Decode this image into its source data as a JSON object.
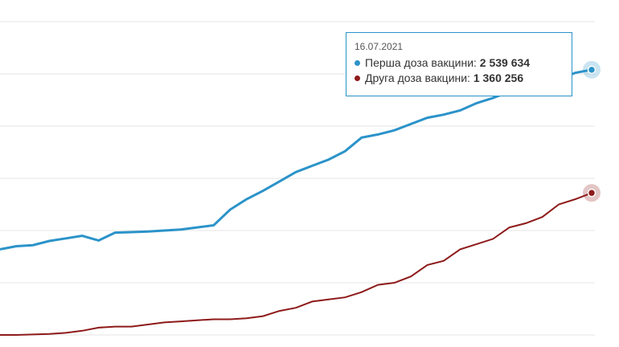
{
  "colors": {
    "first": "#2b93c9",
    "second": "#8e1a1a",
    "grid": "#e6e6e6",
    "border": "#2b93c9"
  },
  "tooltip": {
    "date": "16.07.2021",
    "first_label": "Перша доза вакцини:",
    "first_value": "2 539 634",
    "second_label": "Друга доза вакцини:",
    "second_value": "1 360 256"
  },
  "chart_data": {
    "type": "line",
    "title": "",
    "xlabel": "",
    "ylabel": "",
    "ylim": [
      0,
      3000000
    ],
    "grid": true,
    "x": [
      0,
      1,
      2,
      3,
      4,
      5,
      6,
      7,
      8,
      9,
      10,
      11,
      12,
      13,
      14,
      15,
      16,
      17,
      18,
      19,
      20,
      21,
      22,
      23,
      24,
      25,
      26,
      27,
      28,
      29,
      30,
      31,
      32,
      33,
      34,
      35,
      36
    ],
    "series": [
      {
        "name": "Перша доза вакцини",
        "values": [
          820000,
          850000,
          860000,
          900000,
          925000,
          950000,
          905000,
          980000,
          985000,
          990000,
          1000000,
          1010000,
          1030000,
          1050000,
          1200000,
          1300000,
          1380000,
          1470000,
          1560000,
          1620000,
          1680000,
          1760000,
          1890000,
          1920000,
          1960000,
          2020000,
          2080000,
          2110000,
          2150000,
          2220000,
          2270000,
          2330000,
          2380000,
          2410000,
          2450000,
          2510000,
          2539634
        ]
      },
      {
        "name": "Друга доза вакцини",
        "values": [
          0,
          0,
          5000,
          10000,
          20000,
          40000,
          70000,
          80000,
          80000,
          100000,
          120000,
          130000,
          140000,
          150000,
          150000,
          160000,
          180000,
          230000,
          260000,
          320000,
          340000,
          360000,
          410000,
          480000,
          500000,
          560000,
          670000,
          710000,
          820000,
          870000,
          920000,
          1030000,
          1070000,
          1130000,
          1250000,
          1300000,
          1360256
        ]
      }
    ]
  }
}
